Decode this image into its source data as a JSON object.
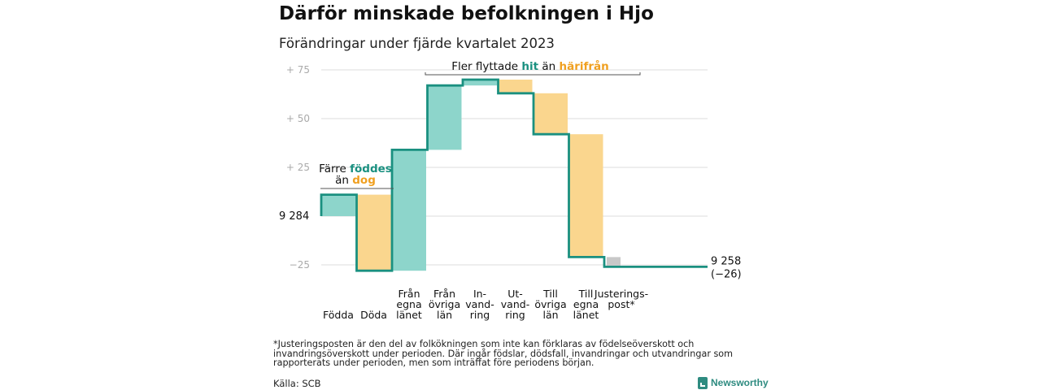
{
  "title": "Därför minskade befolkningen i Hjo",
  "subtitle": "Förändringar under fjärde kvartalet 2023",
  "footnote": "*Justeringsposten är den del av folkökningen som inte kan förklaras av födelseöverskott och invandringsöverskott under perioden. Där ingår födslar, dödsfall, invandringar och utvandringar som rapporterats under perioden, men som inträffat före periodens början.",
  "source": "Källa: SCB",
  "brand": "Newsworthy",
  "colors": {
    "increase": "#8dd5cb",
    "decrease": "#fad68e",
    "adjustment": "#c8c8c8",
    "line": "#1a9080",
    "teal_text": "#1a9080",
    "orange_text": "#f0a020",
    "grid": "#dddddd",
    "axis_text": "#aaaaaa"
  },
  "chart_data": {
    "type": "waterfall",
    "title": "Därför minskade befolkningen i Hjo",
    "subtitle": "Förändringar under fjärde kvartalet 2023",
    "baseline": 9284,
    "baseline_label": "9 284",
    "end_label": "9 258",
    "end_change_label": "(−26)",
    "ylim": [
      -30,
      80
    ],
    "y_ticks": [
      {
        "value": 75,
        "label": "+  75"
      },
      {
        "value": 50,
        "label": "+  50"
      },
      {
        "value": 25,
        "label": "+  25"
      },
      {
        "value": 0,
        "label": ""
      },
      {
        "value": -25,
        "label": "−25"
      }
    ],
    "grid": true,
    "steps": [
      {
        "label": [
          "Födda"
        ],
        "delta": 11,
        "kind": "increase"
      },
      {
        "label": [
          "Döda"
        ],
        "delta": -39,
        "kind": "decrease"
      },
      {
        "label": [
          "Från",
          "egna",
          "länet"
        ],
        "delta": 62,
        "kind": "increase"
      },
      {
        "label": [
          "Från",
          "övriga",
          "län"
        ],
        "delta": 33,
        "kind": "increase"
      },
      {
        "label": [
          "In-",
          "vand-",
          "ring"
        ],
        "delta": 3,
        "kind": "increase"
      },
      {
        "label": [
          "Ut-",
          "vand-",
          "ring"
        ],
        "delta": -7,
        "kind": "decrease"
      },
      {
        "label": [
          "Till",
          "övriga",
          "län"
        ],
        "delta": -21,
        "kind": "decrease"
      },
      {
        "label": [
          "Till",
          "egna",
          "länet"
        ],
        "delta": -63,
        "kind": "decrease"
      },
      {
        "label": [
          "Justerings-",
          "post*"
        ],
        "delta": -5,
        "kind": "adjustment"
      }
    ],
    "annotations": [
      {
        "id": "births",
        "parts": [
          {
            "text": "Färre ",
            "style": "plain"
          },
          {
            "text": "föddes",
            "style": "teal"
          }
        ],
        "line2": [
          {
            "text": "än ",
            "style": "plain"
          },
          {
            "text": "dog",
            "style": "orange"
          }
        ]
      },
      {
        "id": "migration",
        "parts": [
          {
            "text": "Fler flyttade ",
            "style": "plain"
          },
          {
            "text": "hit",
            "style": "teal"
          },
          {
            "text": "  än ",
            "style": "plain"
          },
          {
            "text": "härifrån",
            "style": "orange"
          }
        ]
      }
    ]
  }
}
